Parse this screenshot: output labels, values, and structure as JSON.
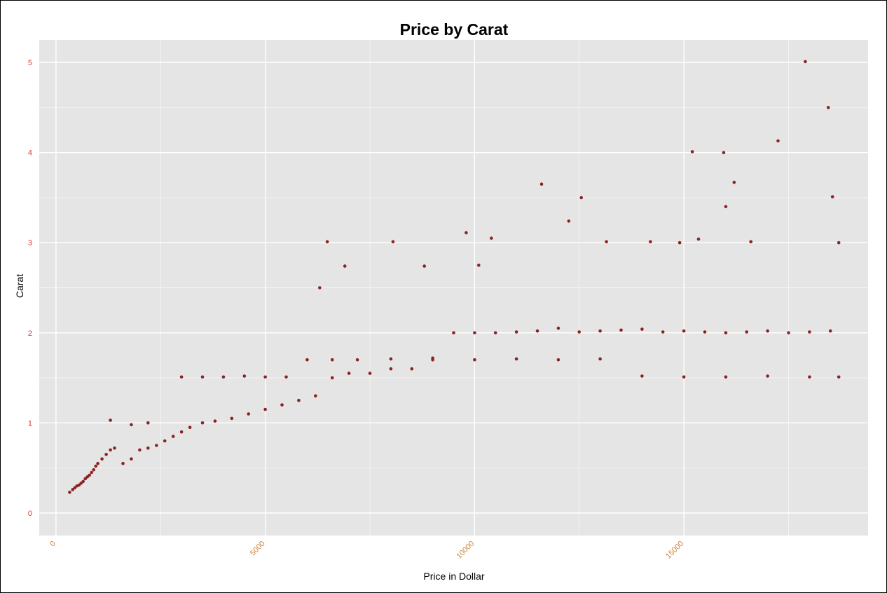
{
  "colors": {
    "panel_bg": "#E5E5E5",
    "grid_major": "#FFFFFF",
    "grid_minor": "#F2F2F2",
    "point": "#8B2323",
    "ytick_text": "#E8312F",
    "xtick_text": "#CD853F"
  },
  "chart_data": {
    "type": "scatter",
    "title": "Price by Carat",
    "xlabel": "Price in Dollar",
    "ylabel": "Carat",
    "xlim": [
      -400,
      19400
    ],
    "ylim": [
      -0.25,
      5.25
    ],
    "xticks": [
      0,
      5000,
      10000,
      15000
    ],
    "xtick_labels": [
      "0",
      "5000",
      "10000",
      "15000"
    ],
    "yticks": [
      0,
      1,
      2,
      3,
      4,
      5
    ],
    "ytick_labels": [
      "0",
      "1",
      "2",
      "3",
      "4",
      "5"
    ],
    "grid": true,
    "legend": "none",
    "series": [
      {
        "x": [
          326,
          400,
          450,
          500,
          550,
          600,
          650,
          700,
          750,
          800,
          850,
          900,
          950,
          1000,
          1100,
          1200,
          1300,
          1400,
          1600,
          1800,
          2000,
          2200,
          2400,
          2600,
          2800,
          3000,
          3200,
          3500,
          3800,
          4200,
          4600,
          5000,
          5400,
          5800,
          6200,
          6600,
          7000,
          7500,
          8000,
          8500,
          9000,
          9500,
          10000,
          10500,
          11000,
          11500,
          12000,
          12500,
          13000,
          13500,
          14000,
          14500,
          15000,
          15500,
          16000,
          16500,
          17000,
          17500,
          18000,
          18500,
          6480,
          6900,
          8050,
          9800,
          10400,
          11600,
          12250,
          12550,
          13150,
          14200,
          14900,
          15200,
          15350,
          15950,
          16000,
          16200,
          16600,
          17250,
          17900,
          18450,
          18550,
          18700,
          6300,
          8800,
          10100,
          1300,
          1800,
          2200,
          3000,
          3500,
          4000,
          4500,
          5000,
          5500,
          6000,
          6600,
          7200,
          8000,
          9000,
          10000,
          11000,
          12000,
          13000,
          14000,
          15000,
          16000,
          17000,
          18000,
          18700
        ],
        "y": [
          0.23,
          0.26,
          0.28,
          0.3,
          0.31,
          0.33,
          0.35,
          0.38,
          0.4,
          0.42,
          0.45,
          0.48,
          0.52,
          0.55,
          0.6,
          0.65,
          0.7,
          0.72,
          0.55,
          0.6,
          0.7,
          0.72,
          0.75,
          0.8,
          0.85,
          0.9,
          0.95,
          1.0,
          1.02,
          1.05,
          1.1,
          1.15,
          1.2,
          1.25,
          1.3,
          1.5,
          1.55,
          1.55,
          1.6,
          1.6,
          1.7,
          2.0,
          2.0,
          2.0,
          2.01,
          2.02,
          2.05,
          2.01,
          2.02,
          2.03,
          2.04,
          2.01,
          2.02,
          2.01,
          2.0,
          2.01,
          2.02,
          2.0,
          2.01,
          2.02,
          3.01,
          2.74,
          3.01,
          3.11,
          3.05,
          3.65,
          3.24,
          3.5,
          3.01,
          3.01,
          3.0,
          4.01,
          3.04,
          4.0,
          3.4,
          3.67,
          3.01,
          4.13,
          5.01,
          4.5,
          3.51,
          3.0,
          2.5,
          2.74,
          2.75,
          1.03,
          0.98,
          1.0,
          1.51,
          1.51,
          1.51,
          1.52,
          1.51,
          1.51,
          1.7,
          1.7,
          1.7,
          1.71,
          1.72,
          1.7,
          1.71,
          1.7,
          1.71,
          1.52,
          1.51,
          1.51,
          1.52,
          1.51,
          1.51
        ]
      }
    ]
  }
}
